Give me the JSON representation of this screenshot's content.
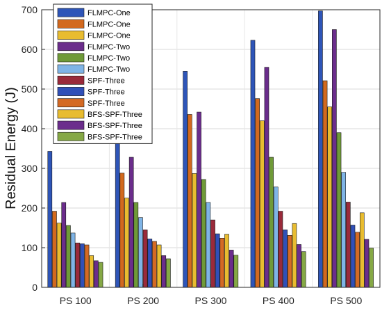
{
  "chart_data": {
    "type": "bar",
    "categories": [
      "PS 100",
      "PS 200",
      "PS 300",
      "PS 400",
      "PS 500"
    ],
    "ylabel": "Residual Energy (J)",
    "xlabel": "",
    "ylim": [
      0,
      700
    ],
    "yticks": [
      0,
      100,
      200,
      300,
      400,
      500,
      600,
      700
    ],
    "grid": true,
    "legend_position": "top-left",
    "series": [
      {
        "name": "FLMPC-One",
        "color": "#2e55b8",
        "values": [
          343,
          398,
          545,
          623,
          697
        ]
      },
      {
        "name": "FLMPC-One",
        "color": "#d2691e",
        "values": [
          192,
          288,
          436,
          476,
          521
        ]
      },
      {
        "name": "FLMPC-One",
        "color": "#e8bc30",
        "values": [
          162,
          225,
          287,
          420,
          455
        ]
      },
      {
        "name": "FLMPC-Two",
        "color": "#6b2d8c",
        "values": [
          214,
          328,
          442,
          555,
          650
        ]
      },
      {
        "name": "FLMPC-Two",
        "color": "#6f9a38",
        "values": [
          156,
          214,
          272,
          328,
          390
        ]
      },
      {
        "name": "FLMPC-Two",
        "color": "#7fb4e6",
        "values": [
          137,
          176,
          214,
          253,
          290
        ]
      },
      {
        "name": "SPF-Three",
        "color": "#9a2a3a",
        "values": [
          112,
          145,
          170,
          192,
          215
        ]
      },
      {
        "name": "SPF-Three",
        "color": "#3050b8",
        "values": [
          110,
          122,
          135,
          145,
          157
        ]
      },
      {
        "name": "SPF-Three",
        "color": "#d46a24",
        "values": [
          107,
          116,
          124,
          131,
          139
        ]
      },
      {
        "name": "BFS-SPF-Three",
        "color": "#e8bc30",
        "values": [
          80,
          107,
          134,
          161,
          188
        ]
      },
      {
        "name": "BFS-SPF-Three",
        "color": "#6b2d8c",
        "values": [
          67,
          80,
          94,
          108,
          121
        ]
      },
      {
        "name": "BFS-SPF-Three",
        "color": "#85a845",
        "values": [
          63,
          72,
          81,
          90,
          99
        ]
      }
    ]
  }
}
